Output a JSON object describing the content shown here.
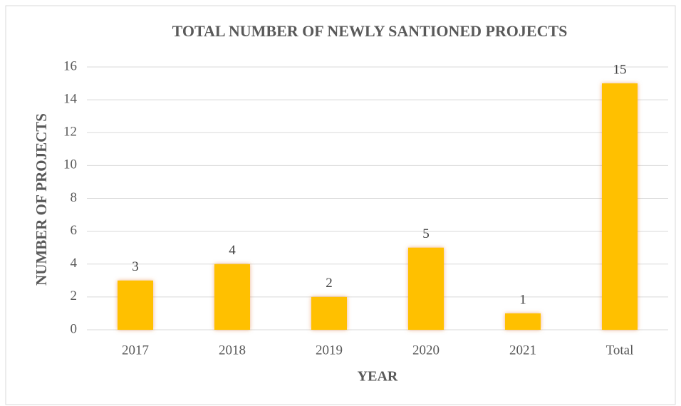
{
  "chart_data": {
    "type": "bar",
    "title": "TOTAL NUMBER OF NEWLY SANTIONED PROJECTS",
    "x_label": "YEAR",
    "y_label": "NUMBER OF PROJECTS",
    "categories": [
      "2017",
      "2018",
      "2019",
      "2020",
      "2021",
      "Total"
    ],
    "values": [
      3,
      4,
      2,
      5,
      1,
      15
    ],
    "color": "#ffc000",
    "ylim": [
      0,
      16
    ],
    "yticks": [
      0,
      2,
      4,
      6,
      8,
      10,
      12,
      14,
      16
    ],
    "grid": true
  }
}
